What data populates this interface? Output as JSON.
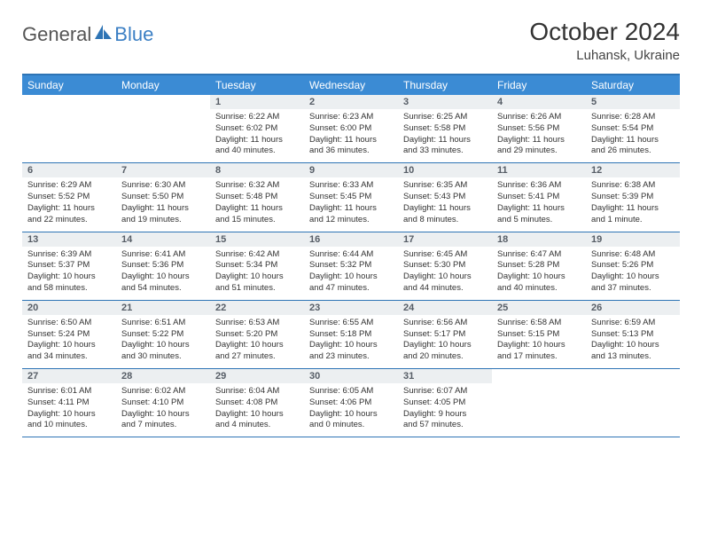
{
  "logo": {
    "part1": "General",
    "part2": "Blue"
  },
  "title": "October 2024",
  "location": "Luhansk, Ukraine",
  "colors": {
    "header_bg": "#3b8bd4",
    "header_text": "#ffffff",
    "border": "#2e74b5",
    "daynum_bg": "#eceff1",
    "daynum_text": "#565d66",
    "body_text": "#323232",
    "logo_gray": "#555555",
    "logo_blue": "#3b7fc4"
  },
  "typography": {
    "title_fontsize": 28,
    "location_fontsize": 15,
    "header_fontsize": 12,
    "daynum_fontsize": 11,
    "cell_fontsize": 9.5
  },
  "day_headers": [
    "Sunday",
    "Monday",
    "Tuesday",
    "Wednesday",
    "Thursday",
    "Friday",
    "Saturday"
  ],
  "weeks": [
    [
      {
        "n": "",
        "lines": [
          "",
          "",
          "",
          ""
        ]
      },
      {
        "n": "",
        "lines": [
          "",
          "",
          "",
          ""
        ]
      },
      {
        "n": "1",
        "lines": [
          "Sunrise: 6:22 AM",
          "Sunset: 6:02 PM",
          "Daylight: 11 hours",
          "and 40 minutes."
        ]
      },
      {
        "n": "2",
        "lines": [
          "Sunrise: 6:23 AM",
          "Sunset: 6:00 PM",
          "Daylight: 11 hours",
          "and 36 minutes."
        ]
      },
      {
        "n": "3",
        "lines": [
          "Sunrise: 6:25 AM",
          "Sunset: 5:58 PM",
          "Daylight: 11 hours",
          "and 33 minutes."
        ]
      },
      {
        "n": "4",
        "lines": [
          "Sunrise: 6:26 AM",
          "Sunset: 5:56 PM",
          "Daylight: 11 hours",
          "and 29 minutes."
        ]
      },
      {
        "n": "5",
        "lines": [
          "Sunrise: 6:28 AM",
          "Sunset: 5:54 PM",
          "Daylight: 11 hours",
          "and 26 minutes."
        ]
      }
    ],
    [
      {
        "n": "6",
        "lines": [
          "Sunrise: 6:29 AM",
          "Sunset: 5:52 PM",
          "Daylight: 11 hours",
          "and 22 minutes."
        ]
      },
      {
        "n": "7",
        "lines": [
          "Sunrise: 6:30 AM",
          "Sunset: 5:50 PM",
          "Daylight: 11 hours",
          "and 19 minutes."
        ]
      },
      {
        "n": "8",
        "lines": [
          "Sunrise: 6:32 AM",
          "Sunset: 5:48 PM",
          "Daylight: 11 hours",
          "and 15 minutes."
        ]
      },
      {
        "n": "9",
        "lines": [
          "Sunrise: 6:33 AM",
          "Sunset: 5:45 PM",
          "Daylight: 11 hours",
          "and 12 minutes."
        ]
      },
      {
        "n": "10",
        "lines": [
          "Sunrise: 6:35 AM",
          "Sunset: 5:43 PM",
          "Daylight: 11 hours",
          "and 8 minutes."
        ]
      },
      {
        "n": "11",
        "lines": [
          "Sunrise: 6:36 AM",
          "Sunset: 5:41 PM",
          "Daylight: 11 hours",
          "and 5 minutes."
        ]
      },
      {
        "n": "12",
        "lines": [
          "Sunrise: 6:38 AM",
          "Sunset: 5:39 PM",
          "Daylight: 11 hours",
          "and 1 minute."
        ]
      }
    ],
    [
      {
        "n": "13",
        "lines": [
          "Sunrise: 6:39 AM",
          "Sunset: 5:37 PM",
          "Daylight: 10 hours",
          "and 58 minutes."
        ]
      },
      {
        "n": "14",
        "lines": [
          "Sunrise: 6:41 AM",
          "Sunset: 5:36 PM",
          "Daylight: 10 hours",
          "and 54 minutes."
        ]
      },
      {
        "n": "15",
        "lines": [
          "Sunrise: 6:42 AM",
          "Sunset: 5:34 PM",
          "Daylight: 10 hours",
          "and 51 minutes."
        ]
      },
      {
        "n": "16",
        "lines": [
          "Sunrise: 6:44 AM",
          "Sunset: 5:32 PM",
          "Daylight: 10 hours",
          "and 47 minutes."
        ]
      },
      {
        "n": "17",
        "lines": [
          "Sunrise: 6:45 AM",
          "Sunset: 5:30 PM",
          "Daylight: 10 hours",
          "and 44 minutes."
        ]
      },
      {
        "n": "18",
        "lines": [
          "Sunrise: 6:47 AM",
          "Sunset: 5:28 PM",
          "Daylight: 10 hours",
          "and 40 minutes."
        ]
      },
      {
        "n": "19",
        "lines": [
          "Sunrise: 6:48 AM",
          "Sunset: 5:26 PM",
          "Daylight: 10 hours",
          "and 37 minutes."
        ]
      }
    ],
    [
      {
        "n": "20",
        "lines": [
          "Sunrise: 6:50 AM",
          "Sunset: 5:24 PM",
          "Daylight: 10 hours",
          "and 34 minutes."
        ]
      },
      {
        "n": "21",
        "lines": [
          "Sunrise: 6:51 AM",
          "Sunset: 5:22 PM",
          "Daylight: 10 hours",
          "and 30 minutes."
        ]
      },
      {
        "n": "22",
        "lines": [
          "Sunrise: 6:53 AM",
          "Sunset: 5:20 PM",
          "Daylight: 10 hours",
          "and 27 minutes."
        ]
      },
      {
        "n": "23",
        "lines": [
          "Sunrise: 6:55 AM",
          "Sunset: 5:18 PM",
          "Daylight: 10 hours",
          "and 23 minutes."
        ]
      },
      {
        "n": "24",
        "lines": [
          "Sunrise: 6:56 AM",
          "Sunset: 5:17 PM",
          "Daylight: 10 hours",
          "and 20 minutes."
        ]
      },
      {
        "n": "25",
        "lines": [
          "Sunrise: 6:58 AM",
          "Sunset: 5:15 PM",
          "Daylight: 10 hours",
          "and 17 minutes."
        ]
      },
      {
        "n": "26",
        "lines": [
          "Sunrise: 6:59 AM",
          "Sunset: 5:13 PM",
          "Daylight: 10 hours",
          "and 13 minutes."
        ]
      }
    ],
    [
      {
        "n": "27",
        "lines": [
          "Sunrise: 6:01 AM",
          "Sunset: 4:11 PM",
          "Daylight: 10 hours",
          "and 10 minutes."
        ]
      },
      {
        "n": "28",
        "lines": [
          "Sunrise: 6:02 AM",
          "Sunset: 4:10 PM",
          "Daylight: 10 hours",
          "and 7 minutes."
        ]
      },
      {
        "n": "29",
        "lines": [
          "Sunrise: 6:04 AM",
          "Sunset: 4:08 PM",
          "Daylight: 10 hours",
          "and 4 minutes."
        ]
      },
      {
        "n": "30",
        "lines": [
          "Sunrise: 6:05 AM",
          "Sunset: 4:06 PM",
          "Daylight: 10 hours",
          "and 0 minutes."
        ]
      },
      {
        "n": "31",
        "lines": [
          "Sunrise: 6:07 AM",
          "Sunset: 4:05 PM",
          "Daylight: 9 hours",
          "and 57 minutes."
        ]
      },
      {
        "n": "",
        "lines": [
          "",
          "",
          "",
          ""
        ]
      },
      {
        "n": "",
        "lines": [
          "",
          "",
          "",
          ""
        ]
      }
    ]
  ]
}
